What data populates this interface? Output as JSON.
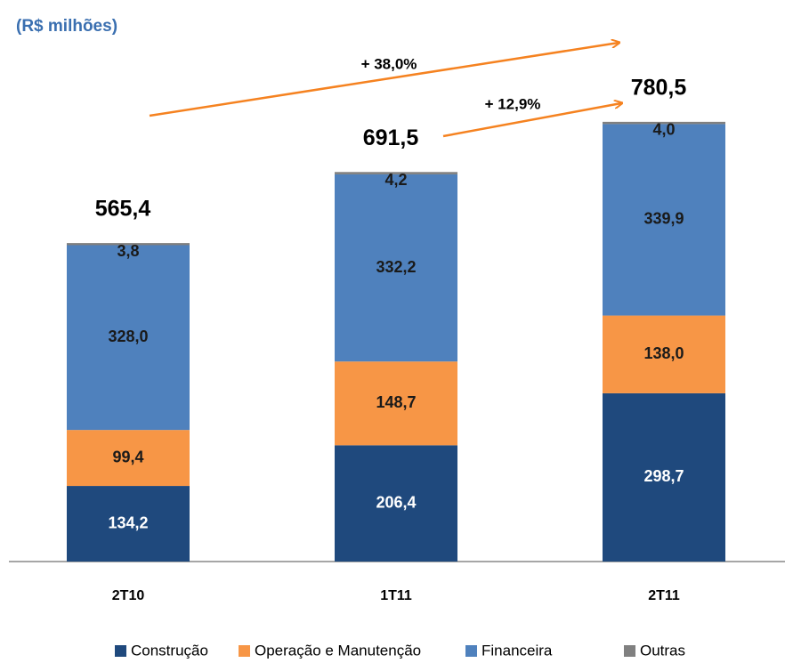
{
  "chart_data": {
    "type": "stacked_bar",
    "title": "(R$ milhões)",
    "categories": [
      "2T10",
      "1T11",
      "2T11"
    ],
    "series": [
      {
        "name": "Construção",
        "color": "#1f497d",
        "values": [
          134.2,
          206.4,
          298.7
        ],
        "value_labels": [
          "134,2",
          "206,4",
          "298,7"
        ]
      },
      {
        "name": "Operação e Manutenção",
        "color": "#f79646",
        "values": [
          99.4,
          148.7,
          138.0
        ],
        "value_labels": [
          "99,4",
          "148,7",
          "138,0"
        ]
      },
      {
        "name": "Financeira",
        "color": "#4f81bd",
        "values": [
          328.0,
          332.2,
          339.9
        ],
        "value_labels": [
          "328,0",
          "332,2",
          "339,9"
        ]
      },
      {
        "name": "Outras",
        "color": "#808080",
        "values": [
          3.8,
          4.2,
          4.0
        ],
        "value_labels": [
          "3,8",
          "4,2",
          "4,0"
        ]
      }
    ],
    "totals": [
      565.4,
      691.5,
      780.5
    ],
    "total_labels": [
      "565,4",
      "691,5",
      "780,5"
    ],
    "annotations": [
      "+ 38,0%",
      "+ 12,9%"
    ]
  }
}
